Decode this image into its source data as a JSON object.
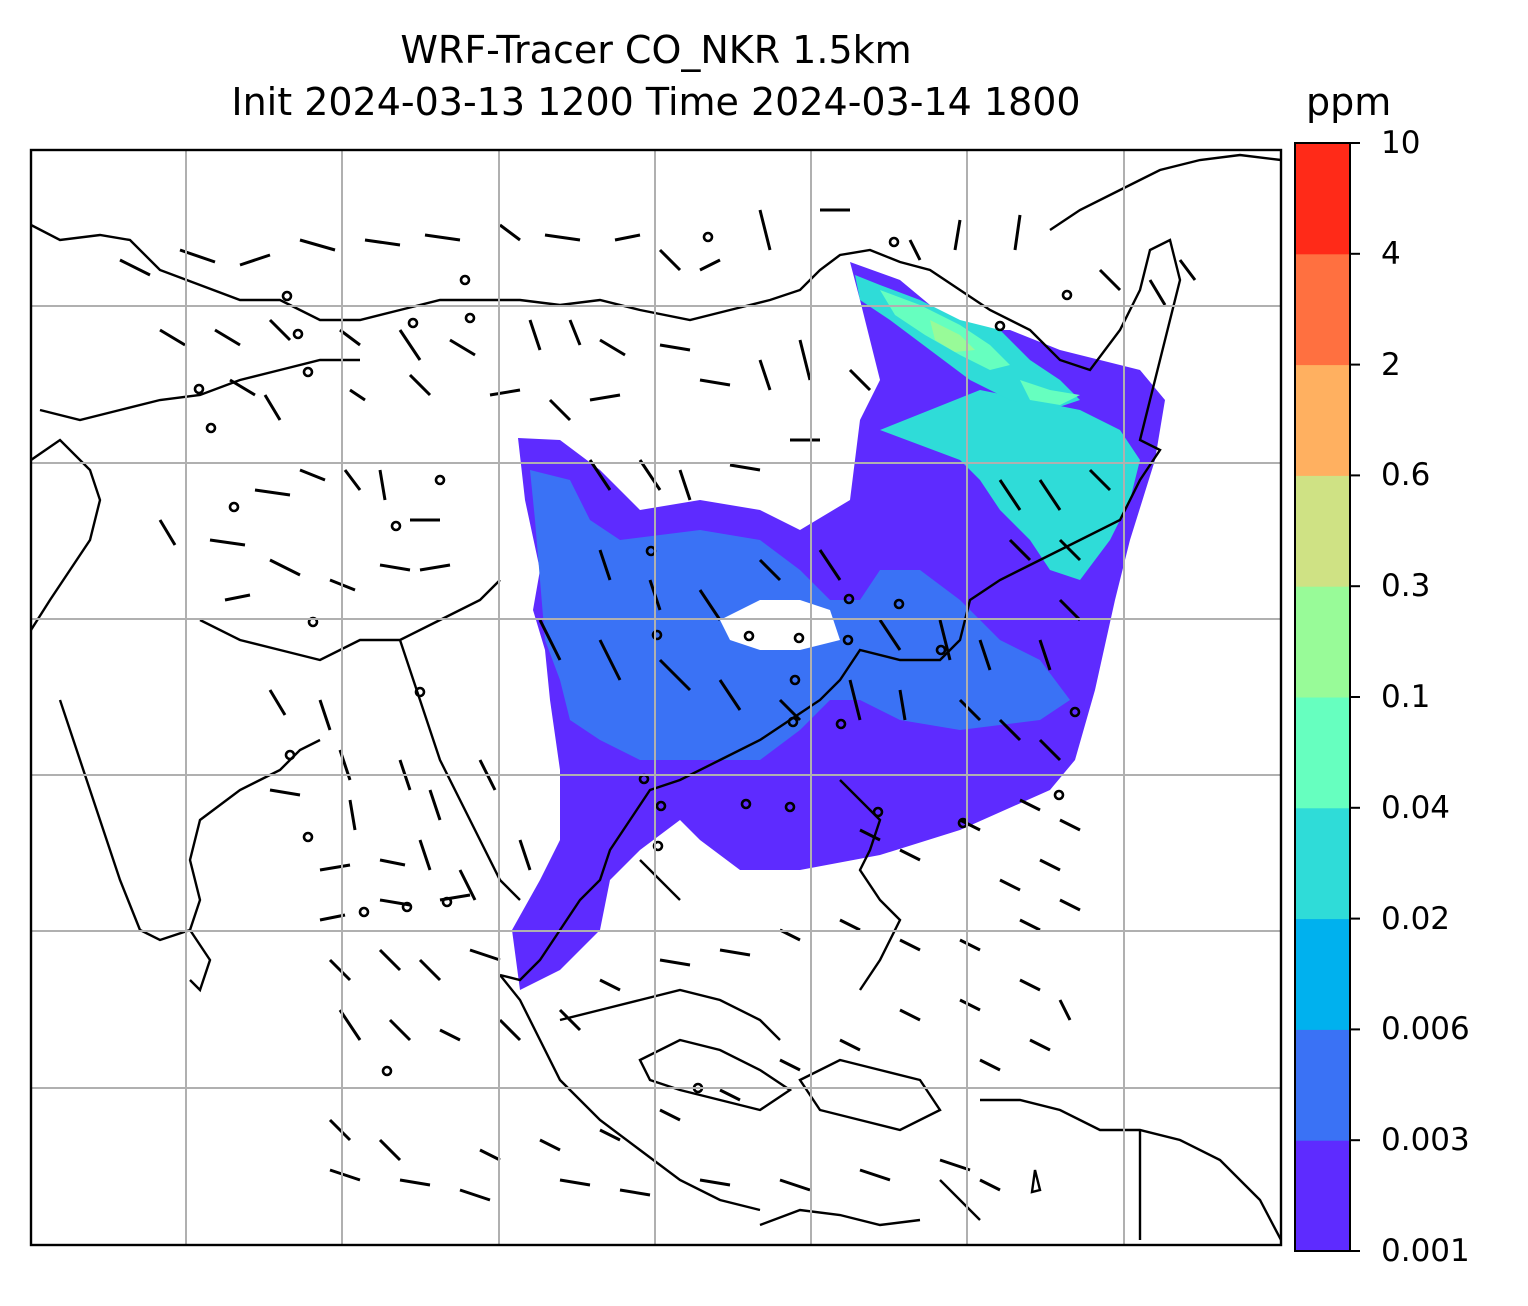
{
  "title": {
    "line1": "WRF-Tracer CO_NKR 1.5km",
    "line2": "Init 2024-03-13 1200 Time 2024-03-14 1800"
  },
  "colorbar": {
    "unit": "ppm",
    "levels": [
      "0.001",
      "0.003",
      "0.006",
      "0.02",
      "0.04",
      "0.1",
      "0.3",
      "0.6",
      "2",
      "4",
      "10"
    ],
    "colors": [
      "#5e2bff",
      "#3a72f5",
      "#00b1ee",
      "#2fdcd8",
      "#66ffbf",
      "#98fb98",
      "#cfe284",
      "#ffb060",
      "#ff7040",
      "#ff2a18"
    ]
  },
  "map": {
    "gridlines": true,
    "coastline_color": "#000000",
    "grid_color": "#b0b0b0",
    "wind_barbs": "black"
  }
}
